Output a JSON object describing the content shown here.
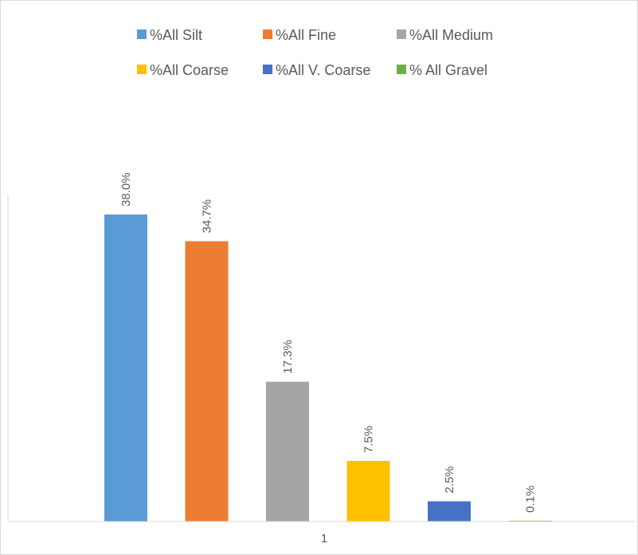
{
  "chart_data": {
    "type": "bar",
    "categories": [
      "1"
    ],
    "series": [
      {
        "name": "%All Silt",
        "values": [
          38.0
        ],
        "label": "38.0%",
        "color": "#5b9bd5"
      },
      {
        "name": "%All Fine",
        "values": [
          34.7
        ],
        "label": "34.7%",
        "color": "#ed7d31"
      },
      {
        "name": "%All Medium",
        "values": [
          17.3
        ],
        "label": "17.3%",
        "color": "#a5a5a5"
      },
      {
        "name": "%All Coarse",
        "values": [
          7.5
        ],
        "label": "7.5%",
        "color": "#ffc000"
      },
      {
        "name": "%All V. Coarse",
        "values": [
          2.5
        ],
        "label": "2.5%",
        "color": "#4472c4"
      },
      {
        "name": "% All Gravel",
        "values": [
          0.1
        ],
        "label": "0.1%",
        "color": "#70ad47"
      }
    ],
    "legend_position": "top",
    "grid": false
  }
}
